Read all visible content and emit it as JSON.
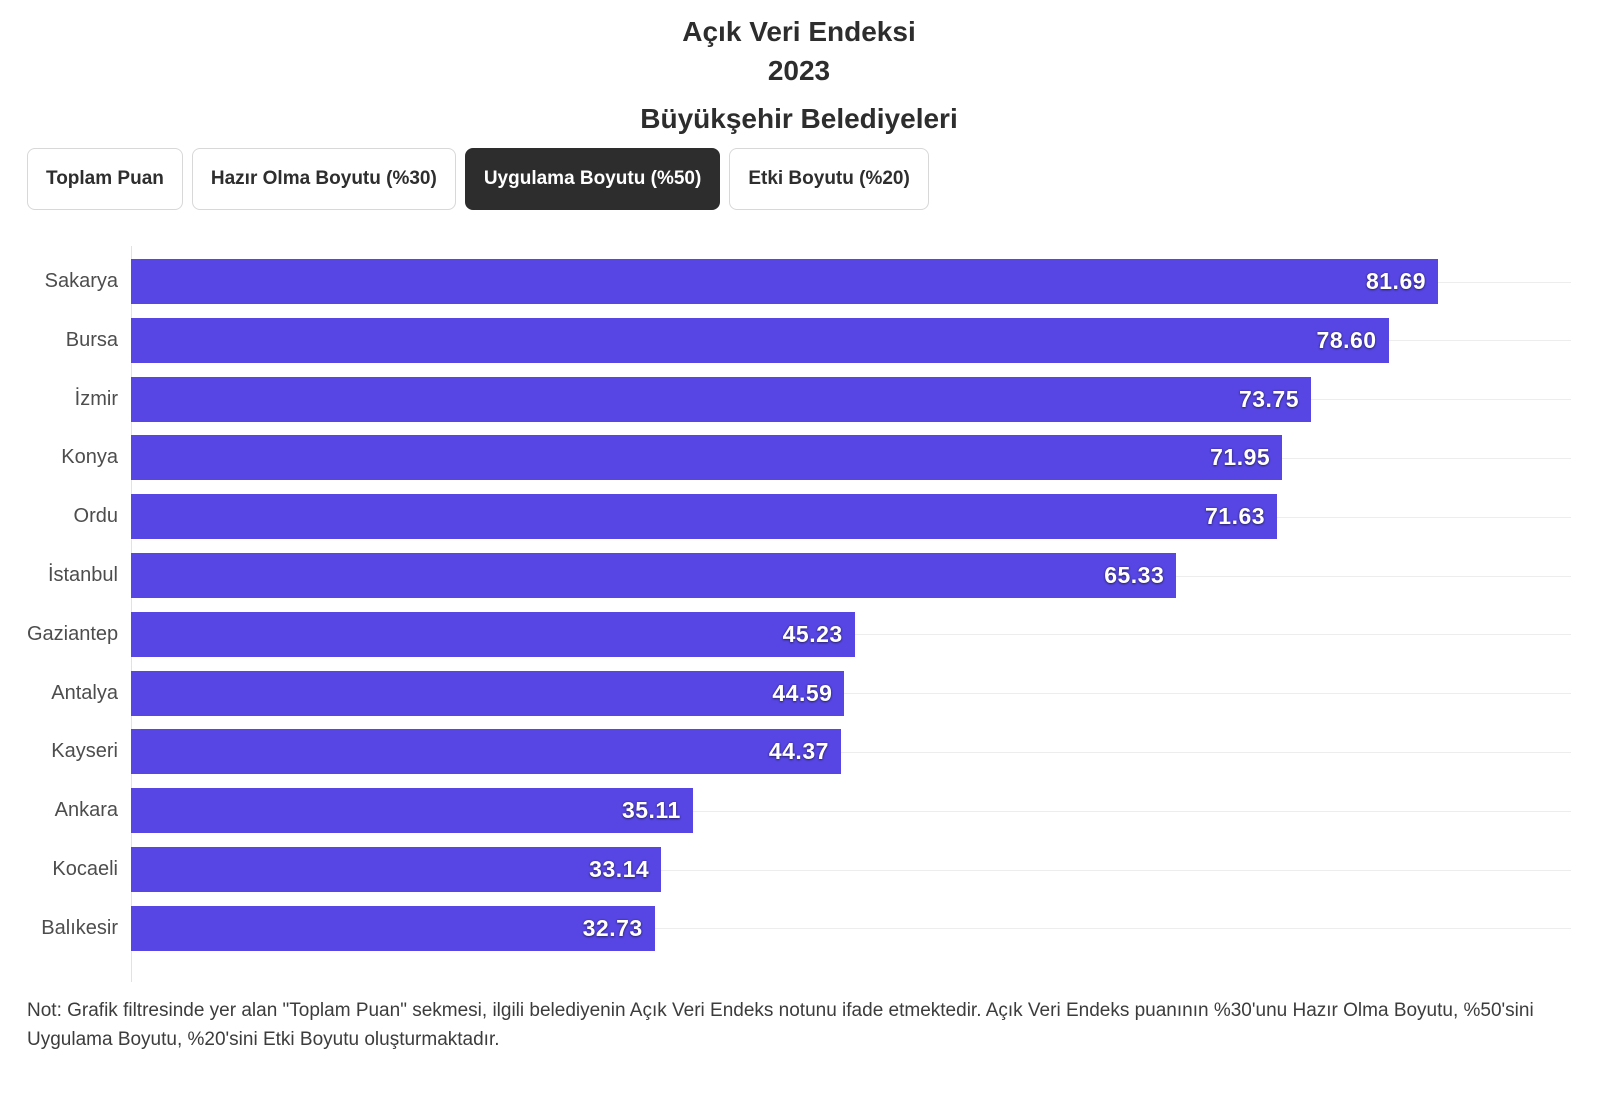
{
  "header": {
    "title_line1": "Açık Veri Endeksi",
    "title_line2": "2023",
    "subtitle": "Büyükşehir Belediyeleri"
  },
  "tabs": [
    {
      "label": "Toplam Puan",
      "selected": false
    },
    {
      "label": "Hazır Olma Boyutu (%30)",
      "selected": false
    },
    {
      "label": "Uygulama Boyutu (%50)",
      "selected": true
    },
    {
      "label": "Etki Boyutu (%20)",
      "selected": false
    }
  ],
  "chart_data": {
    "type": "bar",
    "orientation": "horizontal",
    "title": "Açık Veri Endeksi 2023",
    "subtitle": "Büyükşehir Belediyeleri",
    "selected_filter": "Uygulama Boyutu (%50)",
    "categories": [
      "Sakarya",
      "Bursa",
      "İzmir",
      "Konya",
      "Ordu",
      "İstanbul",
      "Gaziantep",
      "Antalya",
      "Kayseri",
      "Ankara",
      "Kocaeli",
      "Balıkesir"
    ],
    "values": [
      81.69,
      78.6,
      73.75,
      71.95,
      71.63,
      65.33,
      45.23,
      44.59,
      44.37,
      35.11,
      33.14,
      32.73
    ],
    "value_decimals": 2,
    "xlim": [
      0,
      90
    ],
    "grid": true,
    "legend": false,
    "bar_color": "#5746e3",
    "value_label_color": "#ffffff",
    "gridline_color": "#ededed"
  },
  "note": "Not: Grafik filtresinde yer alan \"Toplam Puan\" sekmesi, ilgili belediyenin Açık Veri Endeks notunu ifade etmektedir. Açık Veri Endeks puanının %30'unu Hazır Olma Boyutu, %50'sini Uygulama Boyutu, %20'sini Etki Boyutu oluşturmaktadır."
}
